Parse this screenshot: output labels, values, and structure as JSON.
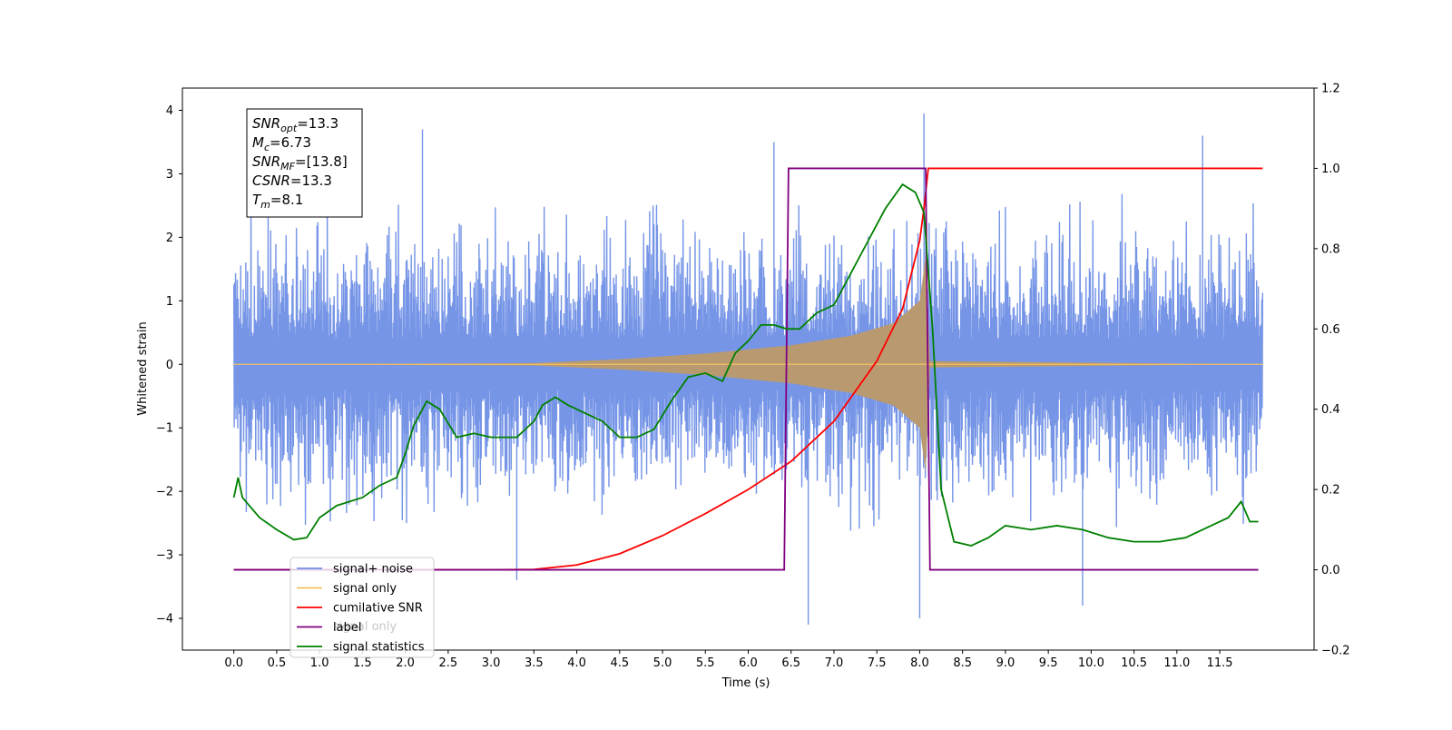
{
  "chart_data": {
    "type": "line",
    "xlabel": "Time (s)",
    "ylabel": "Whitened strain",
    "xlim": [
      -0.6,
      12.6
    ],
    "ylim": [
      -4.5,
      4.35
    ],
    "y2lim": [
      -0.2,
      1.2
    ],
    "x_ticks": [
      "0.0",
      "0.5",
      "1.0",
      "1.5",
      "2.0",
      "2.5",
      "3.0",
      "3.5",
      "4.0",
      "4.5",
      "5.0",
      "5.5",
      "6.0",
      "6.5",
      "7.0",
      "7.5",
      "8.0",
      "8.5",
      "9.0",
      "9.5",
      "10.0",
      "10.5",
      "11.0",
      "11.5"
    ],
    "y_ticks": [
      "4",
      "3",
      "2",
      "1",
      "0",
      "−1",
      "−2",
      "−3",
      "−4"
    ],
    "y2_ticks": [
      "1.2",
      "1.0",
      "0.8",
      "0.6",
      "0.4",
      "0.2",
      "0.0",
      "−0.2"
    ],
    "info_box": {
      "lines": [
        {
          "sym": "SNR",
          "sub": "opt",
          "val": "=13.3"
        },
        {
          "sym": "M",
          "sub": "c",
          "val": "=6.73"
        },
        {
          "sym": "SNR",
          "sub": "MF",
          "val": "=[13.8]"
        },
        {
          "sym": "CSNR",
          "sub": "",
          "val": "=13.3"
        },
        {
          "sym": "T",
          "sub": "m",
          "val": "=8.1"
        }
      ]
    },
    "legend": {
      "position": "lower-left",
      "entries": [
        "signal+ noise",
        "signal only",
        "cumilative SNR",
        "label",
        "signal statistics"
      ],
      "ghost_text": "signal only"
    },
    "series": [
      {
        "name": "signal+ noise",
        "axis": "left",
        "color": "#6f8fe6",
        "description_type": "noise",
        "x_range": [
          0.0,
          12.0
        ],
        "envelope": [
          2.3,
          -2.8
        ],
        "peaks": [
          {
            "x": 2.2,
            "y": 3.7
          },
          {
            "x": 6.3,
            "y": 3.5
          },
          {
            "x": 8.05,
            "y": 3.95
          },
          {
            "x": 6.7,
            "y": -4.1
          },
          {
            "x": 3.3,
            "y": -3.4
          },
          {
            "x": 8.0,
            "y": -4.0
          },
          {
            "x": 9.9,
            "y": -3.8
          },
          {
            "x": 11.3,
            "y": 3.6
          }
        ]
      },
      {
        "name": "signal only",
        "axis": "left",
        "color": "#f4c060",
        "fill_color": "#b99a70",
        "description_type": "chirp",
        "x_range": [
          0.0,
          12.0
        ],
        "merger_time": 8.1,
        "amplitude_envelope": [
          {
            "x": 0.0,
            "y": 0.0
          },
          {
            "x": 3.5,
            "y": 0.02
          },
          {
            "x": 4.5,
            "y": 0.08
          },
          {
            "x": 5.5,
            "y": 0.17
          },
          {
            "x": 6.5,
            "y": 0.3
          },
          {
            "x": 7.2,
            "y": 0.45
          },
          {
            "x": 7.7,
            "y": 0.65
          },
          {
            "x": 8.0,
            "y": 1.0
          },
          {
            "x": 8.07,
            "y": 1.7
          },
          {
            "x": 8.12,
            "y": 0.05
          },
          {
            "x": 12.0,
            "y": 0.0
          }
        ]
      },
      {
        "name": "cumilative SNR",
        "axis": "right",
        "color": "#ff0000",
        "points": [
          {
            "x": 0.0,
            "y": 0.0
          },
          {
            "x": 3.0,
            "y": 0.0
          },
          {
            "x": 3.5,
            "y": 0.001
          },
          {
            "x": 4.0,
            "y": 0.012
          },
          {
            "x": 4.5,
            "y": 0.04
          },
          {
            "x": 5.0,
            "y": 0.085
          },
          {
            "x": 5.5,
            "y": 0.14
          },
          {
            "x": 6.0,
            "y": 0.2
          },
          {
            "x": 6.5,
            "y": 0.27
          },
          {
            "x": 7.0,
            "y": 0.37
          },
          {
            "x": 7.5,
            "y": 0.52
          },
          {
            "x": 7.8,
            "y": 0.65
          },
          {
            "x": 8.0,
            "y": 0.82
          },
          {
            "x": 8.05,
            "y": 0.9
          },
          {
            "x": 8.1,
            "y": 1.0
          },
          {
            "x": 12.0,
            "y": 1.0
          }
        ]
      },
      {
        "name": "label",
        "axis": "right",
        "color": "#800080",
        "points": [
          {
            "x": 0.0,
            "y": 0.0
          },
          {
            "x": 6.42,
            "y": 0.0
          },
          {
            "x": 6.47,
            "y": 1.0
          },
          {
            "x": 8.07,
            "y": 1.0
          },
          {
            "x": 8.12,
            "y": 0.0
          },
          {
            "x": 11.95,
            "y": 0.0
          }
        ]
      },
      {
        "name": "signal statistics",
        "axis": "right",
        "color": "#008000",
        "points": [
          {
            "x": 0.0,
            "y": 0.18
          },
          {
            "x": 0.05,
            "y": 0.23
          },
          {
            "x": 0.1,
            "y": 0.18
          },
          {
            "x": 0.3,
            "y": 0.13
          },
          {
            "x": 0.5,
            "y": 0.1
          },
          {
            "x": 0.7,
            "y": 0.075
          },
          {
            "x": 0.85,
            "y": 0.08
          },
          {
            "x": 1.0,
            "y": 0.13
          },
          {
            "x": 1.2,
            "y": 0.16
          },
          {
            "x": 1.5,
            "y": 0.18
          },
          {
            "x": 1.7,
            "y": 0.21
          },
          {
            "x": 1.9,
            "y": 0.23
          },
          {
            "x": 2.0,
            "y": 0.29
          },
          {
            "x": 2.1,
            "y": 0.36
          },
          {
            "x": 2.25,
            "y": 0.42
          },
          {
            "x": 2.4,
            "y": 0.4
          },
          {
            "x": 2.6,
            "y": 0.33
          },
          {
            "x": 2.8,
            "y": 0.34
          },
          {
            "x": 3.0,
            "y": 0.33
          },
          {
            "x": 3.3,
            "y": 0.33
          },
          {
            "x": 3.5,
            "y": 0.37
          },
          {
            "x": 3.6,
            "y": 0.41
          },
          {
            "x": 3.75,
            "y": 0.43
          },
          {
            "x": 3.9,
            "y": 0.41
          },
          {
            "x": 4.1,
            "y": 0.39
          },
          {
            "x": 4.3,
            "y": 0.37
          },
          {
            "x": 4.5,
            "y": 0.33
          },
          {
            "x": 4.7,
            "y": 0.33
          },
          {
            "x": 4.9,
            "y": 0.35
          },
          {
            "x": 5.1,
            "y": 0.42
          },
          {
            "x": 5.3,
            "y": 0.48
          },
          {
            "x": 5.5,
            "y": 0.49
          },
          {
            "x": 5.7,
            "y": 0.47
          },
          {
            "x": 5.85,
            "y": 0.54
          },
          {
            "x": 6.0,
            "y": 0.57
          },
          {
            "x": 6.15,
            "y": 0.61
          },
          {
            "x": 6.3,
            "y": 0.61
          },
          {
            "x": 6.45,
            "y": 0.6
          },
          {
            "x": 6.6,
            "y": 0.6
          },
          {
            "x": 6.8,
            "y": 0.64
          },
          {
            "x": 7.0,
            "y": 0.66
          },
          {
            "x": 7.2,
            "y": 0.74
          },
          {
            "x": 7.4,
            "y": 0.82
          },
          {
            "x": 7.6,
            "y": 0.9
          },
          {
            "x": 7.8,
            "y": 0.96
          },
          {
            "x": 7.95,
            "y": 0.94
          },
          {
            "x": 8.05,
            "y": 0.89
          },
          {
            "x": 8.15,
            "y": 0.6
          },
          {
            "x": 8.25,
            "y": 0.2
          },
          {
            "x": 8.4,
            "y": 0.07
          },
          {
            "x": 8.6,
            "y": 0.06
          },
          {
            "x": 8.8,
            "y": 0.08
          },
          {
            "x": 9.0,
            "y": 0.11
          },
          {
            "x": 9.3,
            "y": 0.1
          },
          {
            "x": 9.6,
            "y": 0.11
          },
          {
            "x": 9.9,
            "y": 0.1
          },
          {
            "x": 10.2,
            "y": 0.08
          },
          {
            "x": 10.5,
            "y": 0.07
          },
          {
            "x": 10.8,
            "y": 0.07
          },
          {
            "x": 11.1,
            "y": 0.08
          },
          {
            "x": 11.4,
            "y": 0.11
          },
          {
            "x": 11.6,
            "y": 0.13
          },
          {
            "x": 11.75,
            "y": 0.17
          },
          {
            "x": 11.85,
            "y": 0.12
          },
          {
            "x": 11.95,
            "y": 0.12
          }
        ]
      }
    ]
  }
}
